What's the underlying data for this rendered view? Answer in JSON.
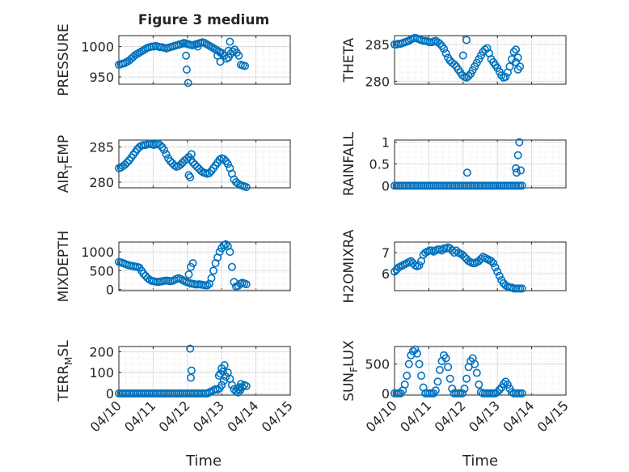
{
  "figure_title": "Figure 3 medium",
  "x_ticks": [
    "04/10",
    "04/11",
    "04/12",
    "04/13",
    "04/14",
    "04/15"
  ],
  "x_label": "Time",
  "marker_color": "#0072BD",
  "chart_data": [
    {
      "type": "scatter",
      "ylabel": "PRESSURE",
      "ylim": [
        938,
        1018
      ],
      "yticks": [
        950,
        1000
      ],
      "xlim": [
        0,
        5
      ],
      "grid": true,
      "x": [
        0,
        0.06,
        0.12,
        0.18,
        0.24,
        0.3,
        0.36,
        0.42,
        0.48,
        0.54,
        0.6,
        0.66,
        0.72,
        0.78,
        0.84,
        0.9,
        0.96,
        1.02,
        1.08,
        1.14,
        1.2,
        1.26,
        1.32,
        1.38,
        1.44,
        1.5,
        1.56,
        1.62,
        1.68,
        1.74,
        1.8,
        1.86,
        1.9,
        1.96,
        2.02,
        2.08,
        2.14,
        2.2,
        2.26,
        2.32,
        2.38,
        2.44,
        2.5,
        2.56,
        2.62,
        2.68,
        2.74,
        2.8,
        2.86,
        2.92,
        2.96,
        3.02,
        3.08,
        3.14,
        3.2,
        3.26,
        3.32,
        3.38,
        3.44,
        3.5,
        3.56,
        3.62,
        3.68,
        1.96,
        1.98,
        2.02,
        2.3,
        2.88,
        2.96,
        3.2,
        3.24
      ],
      "y": [
        970,
        971,
        972,
        973,
        975,
        977,
        980,
        983,
        986,
        988,
        990,
        992,
        994,
        996,
        998,
        999,
        1000,
        1000,
        1001,
        1000,
        999,
        999,
        998,
        997,
        998,
        999,
        1000,
        1001,
        1002,
        1003,
        1004,
        1005,
        1006,
        1005,
        1004,
        1003,
        1002,
        1003,
        1004,
        1005,
        1006,
        1007,
        1006,
        1004,
        1002,
        1000,
        998,
        996,
        994,
        992,
        990,
        989,
        985,
        980,
        982,
        988,
        992,
        995,
        990,
        985,
        970,
        969,
        968,
        985,
        962,
        940,
        1000,
        985,
        975,
        993,
        1008
      ],
      "dot_r": 4.2
    },
    {
      "type": "scatter",
      "ylabel": "THETA",
      "ylim": [
        279.6,
        286.2
      ],
      "yticks": [
        280,
        285
      ],
      "xlim": [
        0,
        5
      ],
      "grid": true,
      "x": [
        0,
        0.06,
        0.12,
        0.18,
        0.24,
        0.3,
        0.36,
        0.42,
        0.48,
        0.54,
        0.6,
        0.66,
        0.72,
        0.78,
        0.84,
        0.9,
        0.96,
        1.02,
        1.08,
        1.14,
        1.2,
        1.26,
        1.32,
        1.38,
        1.44,
        1.5,
        1.56,
        1.62,
        1.68,
        1.74,
        1.8,
        1.86,
        1.92,
        1.98,
        2.04,
        2.1,
        2.16,
        2.22,
        2.28,
        2.34,
        2.4,
        2.46,
        2.52,
        2.58,
        2.64,
        2.7,
        2.76,
        2.82,
        2.88,
        2.94,
        3.0,
        3.06,
        3.12,
        3.18,
        3.24,
        3.3,
        3.36,
        3.42,
        3.48,
        3.54,
        3.6,
        3.66,
        2.0,
        2.1,
        3.54,
        3.6
      ],
      "y": [
        285.0,
        285.0,
        285.1,
        285.1,
        285.2,
        285.3,
        285.4,
        285.5,
        285.7,
        285.8,
        285.9,
        285.8,
        285.7,
        285.6,
        285.5,
        285.5,
        285.4,
        285.3,
        285.3,
        285.4,
        285.5,
        285.3,
        285.1,
        284.8,
        284.4,
        283.8,
        283.2,
        282.8,
        282.5,
        282.3,
        282.0,
        281.6,
        281.2,
        280.8,
        280.6,
        280.5,
        280.7,
        281.0,
        281.5,
        282.0,
        282.5,
        283.0,
        283.5,
        284.0,
        284.3,
        284.5,
        283.8,
        283.0,
        282.6,
        282.2,
        281.8,
        281.3,
        280.8,
        280.5,
        280.6,
        281.2,
        282.0,
        283.0,
        284.0,
        284.3,
        283.2,
        282.0,
        283.5,
        285.6,
        282.6,
        281.6
      ],
      "dot_r": 4.2
    },
    {
      "type": "scatter",
      "ylabel_main": "AIR",
      "ylabel_sub": "T",
      "ylabel_rest": "EMP",
      "ylim": [
        279.2,
        286.0
      ],
      "yticks": [
        280,
        285
      ],
      "xlim": [
        0,
        5
      ],
      "grid": true,
      "x": [
        0,
        0.06,
        0.12,
        0.18,
        0.24,
        0.3,
        0.36,
        0.42,
        0.48,
        0.54,
        0.6,
        0.66,
        0.72,
        0.78,
        0.84,
        0.9,
        0.96,
        1.02,
        1.08,
        1.14,
        1.2,
        1.26,
        1.32,
        1.38,
        1.44,
        1.5,
        1.56,
        1.62,
        1.68,
        1.74,
        1.8,
        1.86,
        1.92,
        1.98,
        2.04,
        2.1,
        2.16,
        2.22,
        2.28,
        2.34,
        2.4,
        2.46,
        2.52,
        2.58,
        2.64,
        2.7,
        2.76,
        2.82,
        2.88,
        2.94,
        3.0,
        3.06,
        3.12,
        3.18,
        3.24,
        3.3,
        3.36,
        3.42,
        3.48,
        3.54,
        3.6,
        3.66,
        3.72,
        2.04,
        2.08,
        2.12
      ],
      "y": [
        282.0,
        282.1,
        282.3,
        282.5,
        282.8,
        283.1,
        283.5,
        283.9,
        284.3,
        284.7,
        285.0,
        285.2,
        285.3,
        285.3,
        285.4,
        285.5,
        285.4,
        285.3,
        285.4,
        285.5,
        285.3,
        285.0,
        284.6,
        284.0,
        283.4,
        283.0,
        282.7,
        282.4,
        282.2,
        282.3,
        282.5,
        282.8,
        283.1,
        283.3,
        283.6,
        283.2,
        282.8,
        282.5,
        282.2,
        281.9,
        281.6,
        281.4,
        281.3,
        281.2,
        281.3,
        281.6,
        282.0,
        282.4,
        282.8,
        283.2,
        283.4,
        283.3,
        283.0,
        282.6,
        282.0,
        281.2,
        280.4,
        280.0,
        279.8,
        279.6,
        279.5,
        279.4,
        279.3,
        281.0,
        280.7,
        284.0
      ],
      "dot_r": 4.2
    },
    {
      "type": "scatter",
      "ylabel": "RAINFALL",
      "ylim": [
        -0.05,
        1.05
      ],
      "yticks": [
        0,
        0.5,
        1
      ],
      "ytick_labels": [
        "0",
        "0.5",
        "1"
      ],
      "xlim": [
        0,
        5
      ],
      "grid": true,
      "x": [
        0,
        0.06,
        0.12,
        0.18,
        0.24,
        0.3,
        0.36,
        0.42,
        0.48,
        0.54,
        0.6,
        0.66,
        0.72,
        0.78,
        0.84,
        0.9,
        0.96,
        1.02,
        1.08,
        1.14,
        1.2,
        1.26,
        1.32,
        1.38,
        1.44,
        1.5,
        1.56,
        1.62,
        1.68,
        1.74,
        1.8,
        1.86,
        1.92,
        1.98,
        2.04,
        2.1,
        2.16,
        2.22,
        2.28,
        2.34,
        2.4,
        2.46,
        2.52,
        2.58,
        2.64,
        2.7,
        2.76,
        2.82,
        2.88,
        2.94,
        3.0,
        3.06,
        3.12,
        3.18,
        3.24,
        3.3,
        3.36,
        3.42,
        3.48,
        3.54,
        3.6,
        3.66,
        3.72,
        2.12,
        3.54,
        3.6,
        3.64,
        3.56,
        3.68
      ],
      "y": [
        0,
        0,
        0,
        0,
        0,
        0,
        0,
        0,
        0,
        0,
        0,
        0,
        0,
        0,
        0,
        0,
        0,
        0,
        0,
        0,
        0,
        0,
        0,
        0,
        0,
        0,
        0,
        0,
        0,
        0,
        0,
        0,
        0,
        0,
        0,
        0,
        0,
        0,
        0,
        0,
        0,
        0,
        0,
        0,
        0,
        0,
        0,
        0,
        0,
        0,
        0,
        0,
        0,
        0,
        0,
        0,
        0,
        0,
        0,
        0,
        0,
        0,
        0,
        0.3,
        0.4,
        0.7,
        1.0,
        0.3,
        0.35
      ],
      "dot_r": 4.2
    },
    {
      "type": "scatter",
      "ylabel": "MIXDEPTH",
      "ylim": [
        -30,
        1260
      ],
      "yticks": [
        0,
        500,
        1000
      ],
      "xlim": [
        0,
        5
      ],
      "grid": true,
      "x": [
        0,
        0.06,
        0.12,
        0.18,
        0.24,
        0.3,
        0.36,
        0.42,
        0.48,
        0.54,
        0.6,
        0.66,
        0.72,
        0.78,
        0.84,
        0.9,
        0.96,
        1.02,
        1.08,
        1.14,
        1.2,
        1.26,
        1.32,
        1.38,
        1.44,
        1.5,
        1.56,
        1.62,
        1.68,
        1.74,
        1.8,
        1.86,
        1.92,
        1.98,
        2.04,
        2.1,
        2.16,
        2.22,
        2.28,
        2.34,
        2.4,
        2.46,
        2.52,
        2.58,
        2.64,
        2.7,
        2.76,
        2.82,
        2.88,
        2.94,
        3.0,
        3.06,
        3.12,
        3.18,
        3.24,
        3.3,
        3.36,
        3.42,
        3.48,
        3.54,
        3.6,
        3.66,
        3.72,
        2.04,
        2.1,
        2.16
      ],
      "y": [
        730,
        720,
        700,
        680,
        660,
        640,
        630,
        620,
        610,
        600,
        580,
        500,
        420,
        360,
        300,
        260,
        230,
        220,
        210,
        200,
        210,
        220,
        230,
        240,
        230,
        220,
        230,
        250,
        280,
        300,
        280,
        250,
        220,
        200,
        180,
        160,
        150,
        140,
        130,
        140,
        130,
        120,
        110,
        110,
        150,
        300,
        500,
        700,
        850,
        1000,
        1100,
        1180,
        1200,
        1150,
        1000,
        600,
        200,
        80,
        100,
        150,
        180,
        160,
        140,
        400,
        600,
        700
      ],
      "dot_r": 4.2
    },
    {
      "type": "scatter",
      "ylabel": "H2OMIXRA",
      "ylim": [
        5.2,
        7.5
      ],
      "yticks": [
        6,
        7
      ],
      "xlim": [
        0,
        5
      ],
      "grid": true,
      "x": [
        0,
        0.06,
        0.12,
        0.18,
        0.24,
        0.3,
        0.36,
        0.42,
        0.48,
        0.54,
        0.6,
        0.66,
        0.72,
        0.78,
        0.84,
        0.9,
        0.96,
        1.02,
        1.08,
        1.14,
        1.2,
        1.26,
        1.32,
        1.38,
        1.44,
        1.5,
        1.56,
        1.62,
        1.68,
        1.74,
        1.8,
        1.86,
        1.92,
        1.98,
        2.04,
        2.1,
        2.16,
        2.22,
        2.28,
        2.34,
        2.4,
        2.46,
        2.52,
        2.58,
        2.64,
        2.7,
        2.76,
        2.82,
        2.88,
        2.94,
        3.0,
        3.06,
        3.12,
        3.18,
        3.24,
        3.3,
        3.36,
        3.42,
        3.48,
        3.54,
        3.6,
        3.66,
        3.72
      ],
      "y": [
        6.1,
        6.2,
        6.3,
        6.35,
        6.4,
        6.45,
        6.5,
        6.55,
        6.6,
        6.5,
        6.4,
        6.35,
        6.4,
        6.6,
        6.9,
        7.0,
        7.05,
        7.1,
        7.1,
        7.05,
        7.1,
        7.15,
        7.15,
        7.1,
        7.2,
        7.2,
        7.25,
        7.2,
        7.1,
        7.0,
        7.1,
        7.0,
        6.95,
        6.9,
        6.8,
        6.7,
        6.6,
        6.55,
        6.5,
        6.5,
        6.55,
        6.6,
        6.7,
        6.8,
        6.75,
        6.7,
        6.65,
        6.6,
        6.5,
        6.3,
        6.1,
        5.9,
        5.7,
        5.55,
        5.45,
        5.4,
        5.35,
        5.35,
        5.3,
        5.3,
        5.3,
        5.3,
        5.3
      ],
      "dot_r": 4.2
    },
    {
      "type": "scatter",
      "ylabel_main": "TERR",
      "ylabel_sub": "M",
      "ylabel_rest": "SL",
      "ylim": [
        -8,
        225
      ],
      "yticks": [
        0,
        100,
        200
      ],
      "xlim": [
        0,
        5
      ],
      "grid": true,
      "x": [
        0,
        0.06,
        0.12,
        0.18,
        0.24,
        0.3,
        0.36,
        0.42,
        0.48,
        0.54,
        0.6,
        0.66,
        0.72,
        0.78,
        0.84,
        0.9,
        0.96,
        1.02,
        1.08,
        1.14,
        1.2,
        1.26,
        1.32,
        1.38,
        1.44,
        1.5,
        1.56,
        1.62,
        1.68,
        1.74,
        1.8,
        1.86,
        1.92,
        1.98,
        2.04,
        2.1,
        2.16,
        2.22,
        2.28,
        2.34,
        2.4,
        2.46,
        2.52,
        2.58,
        2.64,
        2.7,
        2.76,
        2.82,
        2.88,
        2.94,
        3.0,
        3.06,
        3.12,
        3.18,
        3.24,
        3.3,
        3.36,
        3.42,
        3.48,
        3.54,
        3.6,
        3.66,
        3.72,
        2.08,
        2.12,
        2.1,
        2.92,
        3.0,
        3.08,
        2.96,
        3.04,
        3.48,
        3.52,
        3.56
      ],
      "y": [
        0,
        0,
        0,
        0,
        0,
        0,
        0,
        0,
        0,
        0,
        0,
        0,
        0,
        0,
        0,
        0,
        0,
        0,
        0,
        0,
        0,
        0,
        0,
        0,
        0,
        0,
        0,
        0,
        0,
        0,
        0,
        0,
        0,
        0,
        0,
        0,
        0,
        0,
        0,
        0,
        0,
        0,
        0,
        0,
        5,
        10,
        15,
        20,
        18,
        25,
        40,
        60,
        80,
        100,
        70,
        40,
        20,
        10,
        5,
        15,
        30,
        40,
        35,
        215,
        110,
        75,
        85,
        120,
        135,
        95,
        105,
        20,
        30,
        45
      ],
      "dot_r": 4.2
    },
    {
      "type": "scatter",
      "ylabel_main": "SUN",
      "ylabel_sub": "F",
      "ylabel_rest": "LUX",
      "ylim": [
        -30,
        800
      ],
      "yticks": [
        0,
        500
      ],
      "xlim": [
        0,
        5
      ],
      "grid": true,
      "x": [
        0,
        0.06,
        0.12,
        0.18,
        0.24,
        0.3,
        0.36,
        0.42,
        0.48,
        0.54,
        0.6,
        0.66,
        0.72,
        0.78,
        0.84,
        0.9,
        0.96,
        1.02,
        1.08,
        1.14,
        1.2,
        1.26,
        1.32,
        1.38,
        1.44,
        1.5,
        1.56,
        1.62,
        1.68,
        1.74,
        1.8,
        1.86,
        1.92,
        1.98,
        2.04,
        2.1,
        2.16,
        2.22,
        2.28,
        2.34,
        2.4,
        2.46,
        2.52,
        2.58,
        2.64,
        2.7,
        2.76,
        2.82,
        2.88,
        2.94,
        3.0,
        3.06,
        3.12,
        3.18,
        3.24,
        3.3,
        3.36,
        3.42,
        3.48,
        3.54,
        3.6,
        3.66,
        3.72
      ],
      "y": [
        0,
        0,
        0,
        0,
        50,
        150,
        300,
        500,
        650,
        720,
        750,
        680,
        500,
        300,
        100,
        0,
        0,
        0,
        0,
        0,
        50,
        200,
        400,
        550,
        650,
        600,
        450,
        250,
        80,
        0,
        0,
        0,
        0,
        0,
        80,
        250,
        450,
        550,
        600,
        500,
        350,
        150,
        20,
        0,
        0,
        0,
        0,
        0,
        0,
        0,
        20,
        60,
        100,
        160,
        200,
        150,
        80,
        20,
        0,
        0,
        0,
        0,
        0
      ],
      "dot_r": 4.2
    }
  ]
}
